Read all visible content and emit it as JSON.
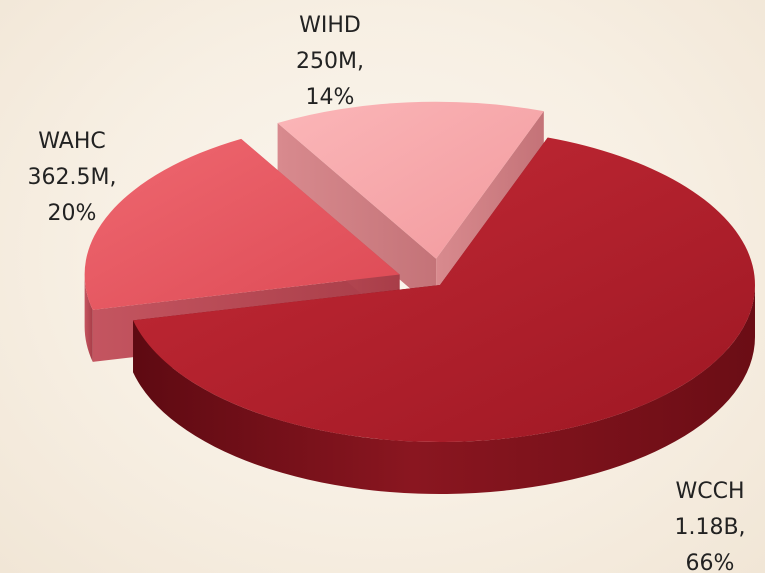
{
  "chart_data": {
    "type": "pie",
    "style": "3d-exploded",
    "slices": [
      {
        "label": "WCCH",
        "display_value": "1.18B",
        "value": 1180000000,
        "percent": "66%",
        "color": "#b31f2c",
        "exploded": false
      },
      {
        "label": "WAHC",
        "display_value": "362.5M",
        "value": 362500000,
        "percent": "20%",
        "color": "#e65a63",
        "exploded": true
      },
      {
        "label": "WIHD",
        "display_value": "250M",
        "value": 250000000,
        "percent": "14%",
        "color": "#f7a8ab",
        "exploded": true
      }
    ]
  }
}
